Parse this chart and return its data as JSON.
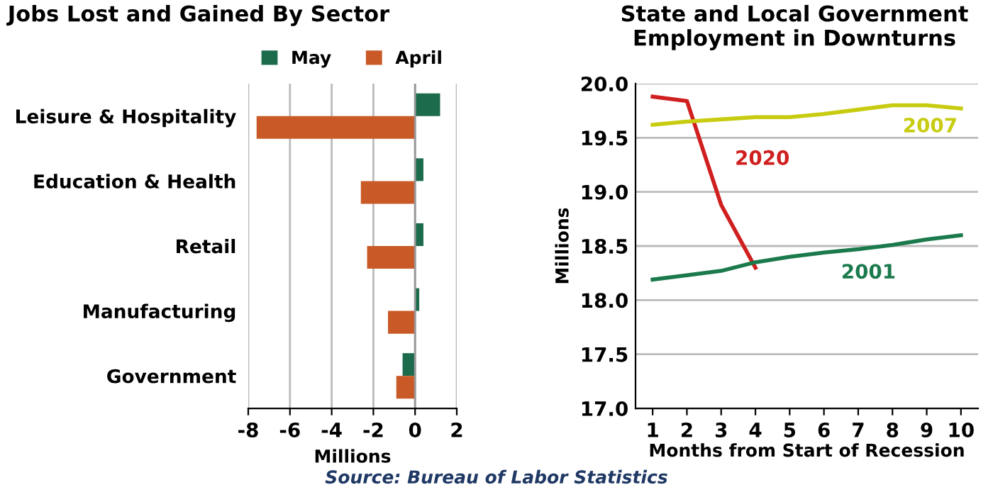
{
  "chart_data": [
    {
      "type": "bar",
      "orientation": "horizontal",
      "title": "Jobs Lost and Gained By Sector",
      "xlabel": "Millions",
      "categories": [
        "Leisure & Hospitality",
        "Education & Health",
        "Retail",
        "Manufacturing",
        "Government"
      ],
      "series": [
        {
          "name": "May",
          "color": "#1b6b4c",
          "values": [
            1.2,
            0.4,
            0.4,
            0.2,
            -0.6
          ]
        },
        {
          "name": "April",
          "color": "#c95a27",
          "values": [
            -7.6,
            -2.6,
            -2.3,
            -1.3,
            -0.9
          ]
        }
      ],
      "xlim": [
        -8,
        2
      ],
      "xticks": [
        -8,
        -6,
        -4,
        -2,
        0,
        2
      ],
      "grid": "x",
      "legend": "top"
    },
    {
      "type": "line",
      "title": "State and Local Government Employment in Downturns",
      "xlabel": "Months from Start of Recession",
      "ylabel": "Millions",
      "categories": [
        "1",
        "2",
        "3",
        "4",
        "5",
        "6",
        "7",
        "8",
        "9",
        "10"
      ],
      "series": [
        {
          "name": "2020",
          "color": "#d01f1f",
          "values": [
            19.88,
            19.84,
            18.88,
            18.3,
            null,
            null,
            null,
            null,
            null,
            null
          ]
        },
        {
          "name": "2007",
          "color": "#c8cc10",
          "values": [
            19.62,
            19.65,
            19.67,
            19.69,
            19.69,
            19.72,
            19.76,
            19.8,
            19.8,
            19.77
          ]
        },
        {
          "name": "2001",
          "color": "#1b7a4c",
          "values": [
            18.19,
            18.23,
            18.27,
            18.35,
            18.4,
            18.44,
            18.47,
            18.51,
            18.56,
            18.6
          ]
        }
      ],
      "ylim": [
        17,
        20
      ],
      "yticks": [
        {
          "value": 17,
          "label": "17.0"
        },
        {
          "value": 17.5,
          "label": "17.5"
        },
        {
          "value": 18,
          "label": "18.0"
        },
        {
          "value": 18.5,
          "label": "18.5"
        },
        {
          "value": 19,
          "label": "19.0"
        },
        {
          "value": 19.5,
          "label": "19.5"
        },
        {
          "value": 20,
          "label": "20.0"
        }
      ],
      "grid": "y",
      "marker": "none",
      "line_style": "solid",
      "annotations": [
        "Source: Bureau of Labor Statistics"
      ]
    }
  ]
}
